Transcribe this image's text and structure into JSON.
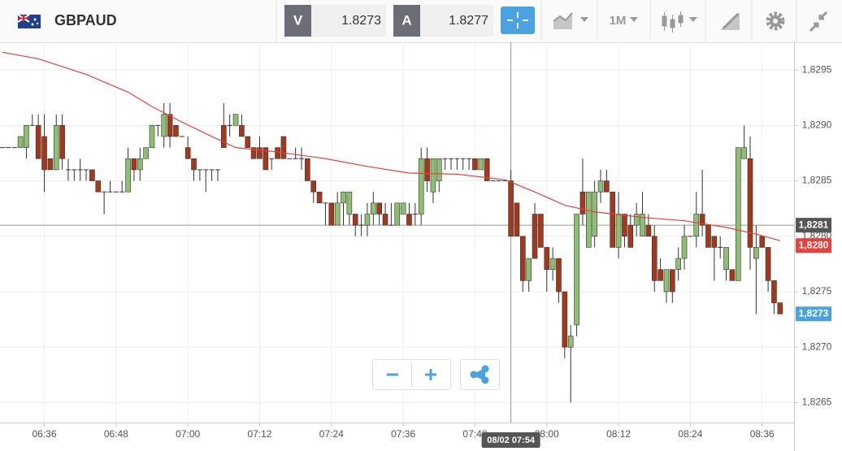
{
  "header": {
    "symbol": "GBPAUD",
    "bid_label": "V",
    "bid": "1.8273",
    "ask_label": "A",
    "ask": "1.8277",
    "timeframe": "1M"
  },
  "chart_data": {
    "type": "candlestick",
    "x": [
      "06:29",
      "06:30",
      "06:31",
      "06:32",
      "06:33",
      "06:34",
      "06:35",
      "06:36",
      "06:37",
      "06:38",
      "06:39",
      "06:40",
      "06:41",
      "06:42",
      "06:43",
      "06:44",
      "06:45",
      "06:46",
      "06:47",
      "06:48",
      "06:49",
      "06:50",
      "06:51",
      "06:52",
      "06:53",
      "06:54",
      "06:55",
      "06:56",
      "06:57",
      "06:58",
      "06:59",
      "07:00",
      "07:01",
      "07:02",
      "07:03",
      "07:04",
      "07:05",
      "07:06",
      "07:07",
      "07:08",
      "07:09",
      "07:10",
      "07:11",
      "07:12",
      "07:13",
      "07:14",
      "07:15",
      "07:16",
      "07:17",
      "07:18",
      "07:19",
      "07:20",
      "07:21",
      "07:22",
      "07:23",
      "07:24",
      "07:25",
      "07:26",
      "07:27",
      "07:28",
      "07:29",
      "07:30",
      "07:31",
      "07:32",
      "07:33",
      "07:34",
      "07:35",
      "07:36",
      "07:37",
      "07:38",
      "07:39",
      "07:40",
      "07:41",
      "07:42",
      "07:43",
      "07:44",
      "07:45",
      "07:46",
      "07:47",
      "07:48",
      "07:49",
      "07:50",
      "07:51",
      "07:52",
      "07:53",
      "07:54",
      "07:55",
      "07:56",
      "07:57",
      "07:58",
      "07:59",
      "08:00",
      "08:01",
      "08:02",
      "08:03",
      "08:04",
      "08:05",
      "08:06",
      "08:07",
      "08:08",
      "08:09",
      "08:10",
      "08:11",
      "08:12",
      "08:13",
      "08:14",
      "08:15",
      "08:16",
      "08:17",
      "08:18",
      "08:19",
      "08:20",
      "08:21",
      "08:22",
      "08:23",
      "08:24",
      "08:25",
      "08:26",
      "08:27",
      "08:28",
      "08:29",
      "08:30",
      "08:31",
      "08:32",
      "08:33",
      "08:34",
      "08:35",
      "08:36",
      "08:37",
      "08:38",
      "08:39"
    ],
    "ohlc": [
      [
        1.8288,
        1.8288,
        1.8288,
        1.8288
      ],
      [
        1.8288,
        1.8288,
        1.8288,
        1.8288
      ],
      [
        1.8288,
        1.8288,
        1.8288,
        1.8288
      ],
      [
        1.8288,
        1.8289,
        1.8288,
        1.8289
      ],
      [
        1.8288,
        1.829,
        1.8287,
        1.829
      ],
      [
        1.829,
        1.8291,
        1.829,
        1.829
      ],
      [
        1.829,
        1.8291,
        1.8287,
        1.8287
      ],
      [
        1.8289,
        1.8291,
        1.8284,
        1.8286
      ],
      [
        1.8287,
        1.8287,
        1.8286,
        1.8286
      ],
      [
        1.8286,
        1.8291,
        1.8286,
        1.829
      ],
      [
        1.829,
        1.8291,
        1.8286,
        1.8287
      ],
      [
        1.8286,
        1.8287,
        1.8285,
        1.8286
      ],
      [
        1.8286,
        1.8286,
        1.8285,
        1.8286
      ],
      [
        1.8286,
        1.8287,
        1.8285,
        1.8286
      ],
      [
        1.8286,
        1.8286,
        1.8285,
        1.8286
      ],
      [
        1.8286,
        1.8286,
        1.8285,
        1.8285
      ],
      [
        1.8285,
        1.8285,
        1.8284,
        1.8284
      ],
      [
        1.8284,
        1.8284,
        1.8282,
        1.8284
      ],
      [
        1.8284,
        1.8285,
        1.8284,
        1.8284
      ],
      [
        1.8284,
        1.8284,
        1.8284,
        1.8284
      ],
      [
        1.8284,
        1.8285,
        1.8284,
        1.8284
      ],
      [
        1.8284,
        1.8288,
        1.8284,
        1.8287
      ],
      [
        1.8287,
        1.8287,
        1.8285,
        1.8286
      ],
      [
        1.8286,
        1.8288,
        1.8285,
        1.8287
      ],
      [
        1.8287,
        1.8288,
        1.8287,
        1.8288
      ],
      [
        1.8288,
        1.829,
        1.8288,
        1.829
      ],
      [
        1.829,
        1.829,
        1.8289,
        1.829
      ],
      [
        1.8289,
        1.8292,
        1.8288,
        1.8291
      ],
      [
        1.8291,
        1.8292,
        1.8288,
        1.8289
      ],
      [
        1.829,
        1.829,
        1.8289,
        1.8289
      ],
      [
        1.8289,
        1.8289,
        1.8289,
        1.8289
      ],
      [
        1.8288,
        1.8289,
        1.8287,
        1.8287
      ],
      [
        1.8287,
        1.8287,
        1.8285,
        1.8286
      ],
      [
        1.8286,
        1.8286,
        1.8285,
        1.8286
      ],
      [
        1.8286,
        1.8286,
        1.8284,
        1.8286
      ],
      [
        1.8286,
        1.8286,
        1.8285,
        1.8286
      ],
      [
        1.8286,
        1.8286,
        1.8285,
        1.8286
      ],
      [
        1.829,
        1.8292,
        1.8288,
        1.8288
      ],
      [
        1.829,
        1.8291,
        1.8289,
        1.829
      ],
      [
        1.829,
        1.8291,
        1.829,
        1.8291
      ],
      [
        1.829,
        1.8291,
        1.8289,
        1.8289
      ],
      [
        1.8289,
        1.8289,
        1.8288,
        1.8288
      ],
      [
        1.8288,
        1.8288,
        1.8287,
        1.8287
      ],
      [
        1.8288,
        1.8289,
        1.8287,
        1.8287
      ],
      [
        1.8288,
        1.8288,
        1.8286,
        1.8286
      ],
      [
        1.8287,
        1.8287,
        1.8286,
        1.8287
      ],
      [
        1.8288,
        1.8288,
        1.8287,
        1.8287
      ],
      [
        1.8289,
        1.8289,
        1.8287,
        1.8287
      ],
      [
        1.8287,
        1.8287,
        1.8287,
        1.8287
      ],
      [
        1.8287,
        1.8288,
        1.8287,
        1.8287
      ],
      [
        1.8287,
        1.8288,
        1.8286,
        1.8287
      ],
      [
        1.8287,
        1.8287,
        1.8285,
        1.8285
      ],
      [
        1.8285,
        1.8285,
        1.8283,
        1.8284
      ],
      [
        1.8284,
        1.8284,
        1.8283,
        1.8283
      ],
      [
        1.8283,
        1.8283,
        1.8281,
        1.8283
      ],
      [
        1.8283,
        1.8283,
        1.8281,
        1.8281
      ],
      [
        1.8281,
        1.8284,
        1.8281,
        1.8283
      ],
      [
        1.8283,
        1.8284,
        1.8281,
        1.8284
      ],
      [
        1.8282,
        1.8284,
        1.8281,
        1.8284
      ],
      [
        1.8282,
        1.8282,
        1.828,
        1.8281
      ],
      [
        1.8281,
        1.8282,
        1.828,
        1.8281
      ],
      [
        1.8281,
        1.8283,
        1.828,
        1.8282
      ],
      [
        1.8282,
        1.8284,
        1.8281,
        1.8283
      ],
      [
        1.8283,
        1.8283,
        1.8281,
        1.8282
      ],
      [
        1.8282,
        1.8283,
        1.8281,
        1.8281
      ],
      [
        1.8281,
        1.8283,
        1.8281,
        1.8281
      ],
      [
        1.8281,
        1.8283,
        1.8281,
        1.8283
      ],
      [
        1.8282,
        1.8283,
        1.8282,
        1.8283
      ],
      [
        1.8282,
        1.8283,
        1.8281,
        1.8281
      ],
      [
        1.8282,
        1.8283,
        1.8281,
        1.8282
      ],
      [
        1.8282,
        1.8288,
        1.8281,
        1.8287
      ],
      [
        1.8287,
        1.8288,
        1.8284,
        1.8285
      ],
      [
        1.8284,
        1.8287,
        1.8283,
        1.8287
      ],
      [
        1.8285,
        1.8287,
        1.8284,
        1.8287
      ],
      [
        1.8287,
        1.8287,
        1.8286,
        1.8287
      ],
      [
        1.8287,
        1.8287,
        1.8286,
        1.8287
      ],
      [
        1.8287,
        1.8287,
        1.8286,
        1.8287
      ],
      [
        1.8287,
        1.8287,
        1.8286,
        1.8287
      ],
      [
        1.8287,
        1.8287,
        1.8286,
        1.8287
      ],
      [
        1.8287,
        1.8287,
        1.8286,
        1.8286
      ],
      [
        1.8286,
        1.8287,
        1.8286,
        1.8287
      ],
      [
        1.8287,
        1.8287,
        1.8285,
        1.8285
      ],
      [
        1.8285,
        1.8285,
        1.8285,
        1.8285
      ],
      [
        1.8285,
        1.8285,
        1.8285,
        1.8285
      ],
      [
        1.8285,
        1.8285,
        1.8285,
        1.8285
      ],
      [
        1.8285,
        1.8286,
        1.828,
        1.828
      ],
      [
        1.8283,
        1.8283,
        1.828,
        1.828
      ],
      [
        1.828,
        1.828,
        1.8275,
        1.8276
      ],
      [
        1.8276,
        1.8278,
        1.8275,
        1.8278
      ],
      [
        1.8282,
        1.8283,
        1.8278,
        1.8278
      ],
      [
        1.8282,
        1.8282,
        1.8279,
        1.8279
      ],
      [
        1.8279,
        1.8279,
        1.8275,
        1.8277
      ],
      [
        1.8277,
        1.8279,
        1.8276,
        1.8278
      ],
      [
        1.8278,
        1.8278,
        1.8274,
        1.8275
      ],
      [
        1.8275,
        1.8275,
        1.8269,
        1.827
      ],
      [
        1.827,
        1.8272,
        1.8265,
        1.8271
      ],
      [
        1.8272,
        1.8282,
        1.8271,
        1.8282
      ],
      [
        1.8284,
        1.8287,
        1.8281,
        1.8282
      ],
      [
        1.8279,
        1.8284,
        1.8279,
        1.8284
      ],
      [
        1.828,
        1.8285,
        1.8279,
        1.8284
      ],
      [
        1.8284,
        1.8286,
        1.8283,
        1.8285
      ],
      [
        1.8285,
        1.8286,
        1.8284,
        1.8284
      ],
      [
        1.8284,
        1.8284,
        1.8279,
        1.8279
      ],
      [
        1.8279,
        1.8284,
        1.8278,
        1.8282
      ],
      [
        1.8282,
        1.8282,
        1.8279,
        1.828
      ],
      [
        1.8281,
        1.8282,
        1.8279,
        1.8279
      ],
      [
        1.8281,
        1.8283,
        1.828,
        1.8282
      ],
      [
        1.828,
        1.8284,
        1.828,
        1.8282
      ],
      [
        1.8281,
        1.8282,
        1.828,
        1.828
      ],
      [
        1.828,
        1.8281,
        1.8275,
        1.8276
      ],
      [
        1.8277,
        1.8278,
        1.8276,
        1.8276
      ],
      [
        1.8275,
        1.8277,
        1.8274,
        1.8277
      ],
      [
        1.8277,
        1.8277,
        1.8274,
        1.8275
      ],
      [
        1.8277,
        1.8279,
        1.8276,
        1.8278
      ],
      [
        1.8278,
        1.8281,
        1.8277,
        1.828
      ],
      [
        1.828,
        1.828,
        1.828,
        1.828
      ],
      [
        1.828,
        1.8284,
        1.8279,
        1.8282
      ],
      [
        1.8282,
        1.8286,
        1.828,
        1.8281
      ],
      [
        1.8281,
        1.8281,
        1.8279,
        1.8279
      ],
      [
        1.828,
        1.828,
        1.8276,
        1.8279
      ],
      [
        1.8279,
        1.828,
        1.8278,
        1.8279
      ],
      [
        1.8277,
        1.8279,
        1.8276,
        1.8279
      ],
      [
        1.8277,
        1.8277,
        1.8276,
        1.8276
      ],
      [
        1.8276,
        1.8288,
        1.8276,
        1.8288
      ],
      [
        1.8287,
        1.829,
        1.8287,
        1.8288
      ],
      [
        1.8287,
        1.8289,
        1.8277,
        1.8279
      ],
      [
        1.8278,
        1.8281,
        1.8273,
        1.8279
      ],
      [
        1.828,
        1.828,
        1.8279,
        1.8279
      ],
      [
        1.8279,
        1.8279,
        1.8275,
        1.8276
      ],
      [
        1.8276,
        1.8276,
        1.8273,
        1.8274
      ],
      [
        1.8274,
        1.8274,
        1.8273,
        1.8273
      ]
    ],
    "up_color": "#8dbf72",
    "down_color": "#a3391c",
    "last_close_label": "1,8273",
    "last_close_color": "#4aa3df",
    "ma": {
      "color": "#e8413c",
      "x": [
        "06:29",
        "06:35",
        "06:43",
        "06:50",
        "06:54",
        "06:59",
        "07:04",
        "07:08",
        "07:15",
        "07:23",
        "07:30",
        "07:37",
        "07:45",
        "07:53",
        "07:58",
        "08:03",
        "08:08",
        "08:16",
        "08:23",
        "08:30",
        "08:35",
        "08:39"
      ],
      "values": [
        1.82966,
        1.8296,
        1.82946,
        1.8293,
        1.82917,
        1.82903,
        1.8289,
        1.8288,
        1.82876,
        1.8287,
        1.82863,
        1.82857,
        1.82856,
        1.82851,
        1.8284,
        1.82828,
        1.82822,
        1.82817,
        1.82814,
        1.82808,
        1.82802,
        1.82796
      ],
      "last_label": "1,8280"
    },
    "crosshair": {
      "x": "07:54",
      "x_label": "08/02 07:54",
      "y": 1.8281,
      "y_label": "1,8281"
    },
    "ylim": [
      1.82632,
      1.82975
    ],
    "yticks": [
      {
        "value": 1.8265,
        "label": "1,8265"
      },
      {
        "value": 1.827,
        "label": "1,8270"
      },
      {
        "value": 1.8275,
        "label": "1,8275"
      },
      {
        "value": 1.828,
        "label": "1,8280"
      },
      {
        "value": 1.8285,
        "label": "1,8285"
      },
      {
        "value": 1.829,
        "label": "1,8290"
      },
      {
        "value": 1.8295,
        "label": "1,8295"
      }
    ],
    "xticks": [
      "06:36",
      "06:48",
      "07:00",
      "07:12",
      "07:24",
      "07:36",
      "07:48",
      "08:00",
      "08:12",
      "08:24",
      "08:36"
    ],
    "grid": true
  }
}
